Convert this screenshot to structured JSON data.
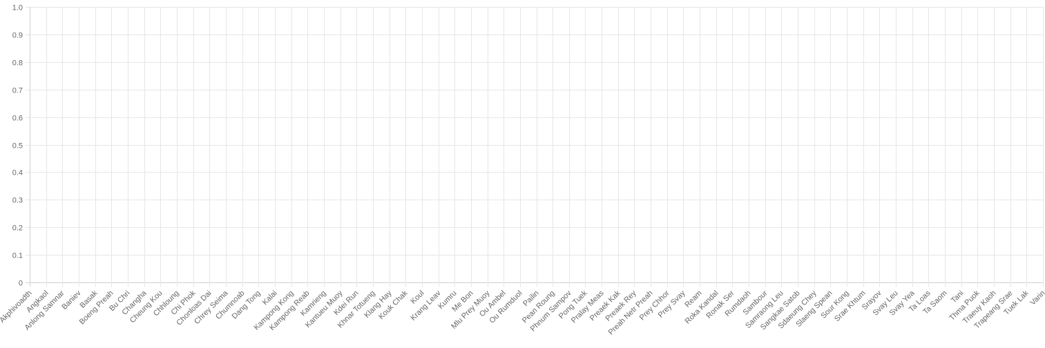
{
  "chart_data": {
    "type": "bar",
    "title": "",
    "xlabel": "",
    "ylabel": "",
    "ylim": [
      0,
      1
    ],
    "yticks": [
      "0",
      "0.1",
      "0.2",
      "0.3",
      "0.4",
      "0.5",
      "0.6",
      "0.7",
      "0.8",
      "0.9",
      "1.0"
    ],
    "grid": true,
    "legend": "none",
    "categories": [
      "Akphivoadth",
      "Angkaol",
      "Anlong Samnar",
      "Baniev",
      "Basak",
      "Boeng Preah",
      "Bu Chri",
      "Changha",
      "Cheung Kou",
      "Chhloung",
      "Chi Phok",
      "Chonloas Dai",
      "Chrey Seima",
      "Chumnoab",
      "Dang Tong",
      "Kalai",
      "Kampong Kong",
      "Kampong Reab",
      "Kamrieng",
      "Kantueu Muoy",
      "Kdei Run",
      "Khnar Totueng",
      "Klang Hay",
      "Kouk Chak",
      "Koul",
      "Krang Leav",
      "Kumru",
      "Me Bon",
      "Mlu Prey Muoy",
      "Ou Ambel",
      "Ou Rumduol",
      "Pailin",
      "Pean Roung",
      "Phnum Sampov",
      "Pong Tuek",
      "Pralay Meas",
      "Preaek Kak",
      "Preaek Rey",
      "Preah Netr Preah",
      "Prey Chhor",
      "Prey Svay",
      "Ream",
      "Roka Kandal",
      "Ronak Ser",
      "Rumdaoh",
      "Sambour",
      "Samraong Leu",
      "Sangkae Satob",
      "Sdaeung Chey",
      "Slaeng Spean",
      "Sour Kong",
      "Srae Khtum",
      "Srayov",
      "Svay Leu",
      "Svay Yea",
      "Ta Loas",
      "Ta Saom",
      "Tani",
      "Thma Puok",
      "Traeuy Kaoh",
      "Trapeang Srae",
      "Tuek Lak",
      "Varin"
    ],
    "series": [
      {
        "values": [
          0,
          0,
          0,
          0,
          0,
          0,
          0,
          0,
          0,
          0,
          0,
          0,
          0,
          0,
          0,
          0,
          0,
          0,
          0,
          0,
          0,
          0,
          0,
          0,
          0,
          0,
          0,
          0,
          0,
          0,
          0,
          0,
          0,
          0,
          0,
          0,
          0,
          0,
          0,
          0,
          0,
          0,
          0,
          0,
          0,
          0,
          0,
          0,
          0,
          0,
          0,
          0,
          0,
          0,
          0,
          0,
          0,
          0,
          0,
          0,
          0,
          0,
          0
        ],
        "color": "#36a2eb"
      }
    ]
  }
}
